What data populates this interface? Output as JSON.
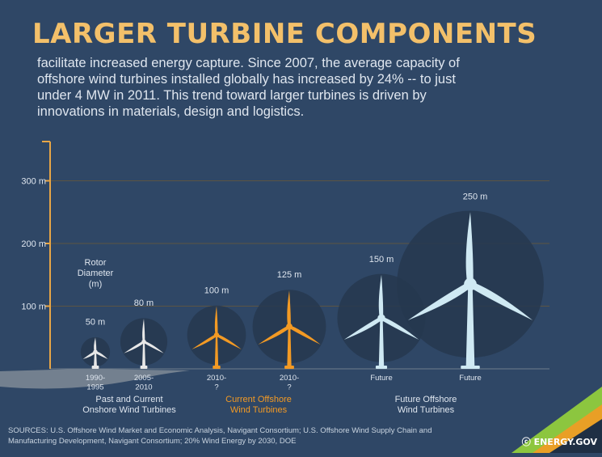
{
  "header": {
    "title": "LARGER TURBINE COMPONENTS",
    "intro": "facilitate increased energy capture. Since 2007, the average capacity of offshore wind turbines installed globally has increased by 24% -- to just under 4 MW in 2011. This trend toward larger turbines is driven by innovations in materials, design and logistics."
  },
  "chart_data": {
    "type": "bar",
    "title": "",
    "ylabel": "Rotor Diameter (m)",
    "xlabel": "",
    "ylim": [
      0,
      380
    ],
    "y_ticks": [
      100,
      200,
      300
    ],
    "y_tick_labels": [
      "100 m",
      "200 m",
      "300 m"
    ],
    "grid": true,
    "categories": [
      "1990-\n1995",
      "2005-\n2010",
      "2010-\n?",
      "2010-\n?",
      "Future",
      "Future"
    ],
    "values": [
      50,
      80,
      100,
      125,
      150,
      250
    ],
    "value_labels": [
      "50 m",
      "80 m",
      "100 m",
      "125 m",
      "150 m",
      "250 m"
    ],
    "groups": [
      {
        "label": "Past and Current\nOnshore Wind Turbines",
        "indices": [
          0,
          1
        ],
        "color": "#e8e8e8"
      },
      {
        "label": "Current Offshore\nWind Turbines",
        "indices": [
          2,
          3
        ],
        "color": "#f39a24"
      },
      {
        "label": "Future Offshore\nWind Turbines",
        "indices": [
          4,
          5
        ],
        "color": "#cfe9f3"
      }
    ],
    "y_axis_color": "#e8a646"
  },
  "sources": "SOURCES: U.S. Offshore Wind Market and Economic Analysis, Navigant Consortium; U.S. Offshore Wind Supply Chain and Manufacturing Development, Navigant Consortium; 20% Wind Energy by 2030, DOE",
  "logo": "ENERGY.GOV",
  "colors": {
    "background": "#2f4766",
    "title": "#f3c06a",
    "gridline": "#5c5443",
    "ground": "#7f8b97",
    "logo_green": "#8cc63f",
    "logo_orange": "#f39a24"
  }
}
